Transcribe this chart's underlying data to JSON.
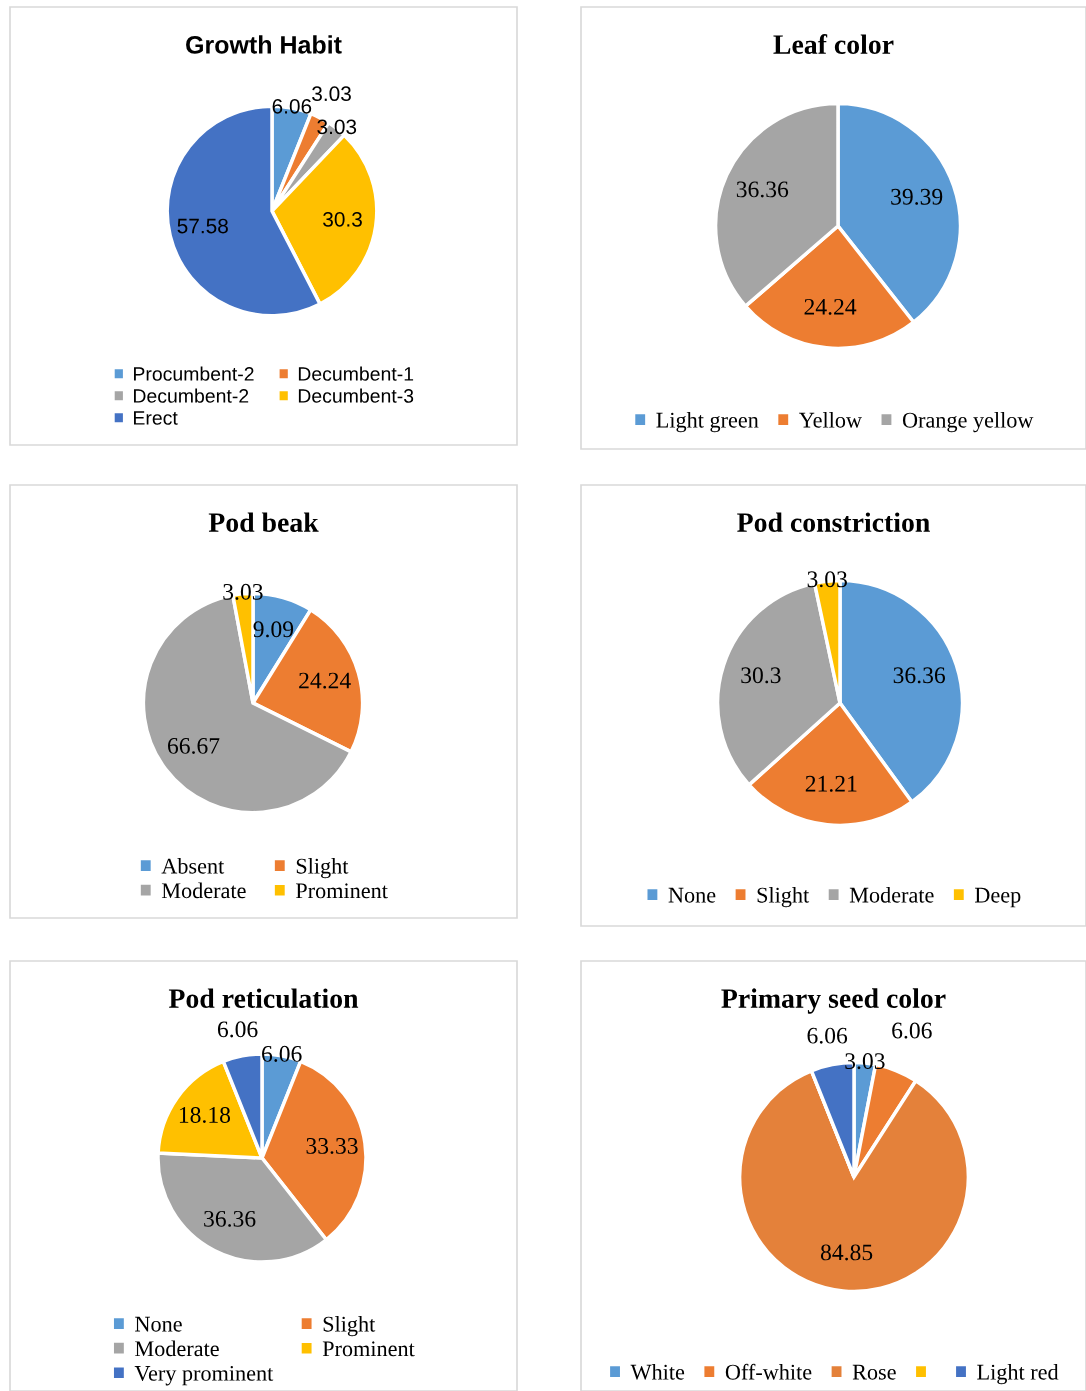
{
  "chart_data": [
    {
      "type": "pie",
      "title": "Growth Habit",
      "categories": [
        "Procumbent-2",
        "Decumbent-1",
        "Decumbent-2",
        "Decumbent-3",
        "Erect"
      ],
      "values": [
        6.06,
        3.03,
        3.03,
        30.3,
        57.58
      ],
      "colors": [
        "#5b9bd5",
        "#ed7d31",
        "#a5a5a5",
        "#ffc000",
        "#4472c4"
      ],
      "data_labels": true,
      "legend": "bottom"
    },
    {
      "type": "pie",
      "title": "Leaf color",
      "categories": [
        "Light green",
        "Yellow",
        "Orange yellow"
      ],
      "values": [
        39.39,
        24.24,
        36.36
      ],
      "colors": [
        "#5b9bd5",
        "#ed7d31",
        "#a5a5a5"
      ],
      "data_labels": true,
      "legend": "bottom"
    },
    {
      "type": "pie",
      "title": "Pod beak",
      "categories": [
        "Absent",
        "Slight",
        "Moderate",
        "Prominent"
      ],
      "values": [
        9.09,
        24.24,
        66.67,
        3.03
      ],
      "colors": [
        "#5b9bd5",
        "#ed7d31",
        "#a5a5a5",
        "#ffc000"
      ],
      "data_labels": true,
      "legend": "bottom"
    },
    {
      "type": "pie",
      "title": "Pod constriction",
      "categories": [
        "None",
        "Slight",
        "Moderate",
        "Deep"
      ],
      "values": [
        36.36,
        21.21,
        30.3,
        3.03
      ],
      "colors": [
        "#5b9bd5",
        "#ed7d31",
        "#a5a5a5",
        "#ffc000"
      ],
      "data_labels": true,
      "legend": "bottom"
    },
    {
      "type": "pie",
      "title": "Pod reticulation",
      "categories": [
        "None",
        "Slight",
        "Moderate",
        "Prominent",
        "Very prominent"
      ],
      "values": [
        6.06,
        33.33,
        36.36,
        18.18,
        6.06
      ],
      "colors": [
        "#5b9bd5",
        "#ed7d31",
        "#a5a5a5",
        "#ffc000",
        "#4472c4"
      ],
      "data_labels": true,
      "legend": "bottom"
    },
    {
      "type": "pie",
      "title": "Primary seed color",
      "categories": [
        "White",
        "Off-white",
        "Rose",
        null,
        "Light red"
      ],
      "values": [
        3.03,
        6.06,
        84.85,
        0,
        6.06
      ],
      "colors": [
        "#5b9bd5",
        "#ed7d31",
        "#e4813a",
        "#ffc000",
        "#4472c4"
      ],
      "data_labels": true,
      "legend": "bottom"
    }
  ]
}
